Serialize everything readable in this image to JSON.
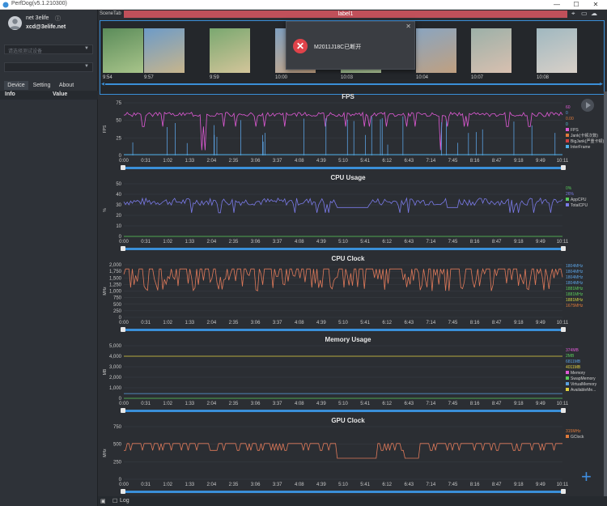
{
  "window": {
    "title": "PerfDog(v5.1.210300)"
  },
  "user": {
    "name": "net 3elife",
    "email": "xcd@3elife.net"
  },
  "sidebar": {
    "device_placeholder": "请选择测试设备",
    "app_placeholder": "",
    "tabs": [
      "Device",
      "Setting",
      "About"
    ],
    "columns": [
      "Info",
      "Value"
    ]
  },
  "scene": {
    "tab_label": "SceneTab",
    "label": "label1"
  },
  "thumbnail_times": [
    "9:54",
    "9:57",
    "9:59",
    "10:00",
    "10:03",
    "10:04",
    "10:07",
    "10:08"
  ],
  "toast": {
    "message": "M2011J18C已断开"
  },
  "bottom": {
    "log_label": "Log"
  },
  "x_axis_ticks": [
    "0:00",
    "0:31",
    "1:02",
    "1:33",
    "2:04",
    "2:35",
    "3:06",
    "3:37",
    "4:08",
    "4:39",
    "5:10",
    "5:41",
    "6:12",
    "6:43",
    "7:14",
    "7:45",
    "8:16",
    "8:47",
    "9:18",
    "9:49",
    "10:11"
  ],
  "charts": [
    {
      "id": "fps",
      "title": "FPS",
      "ylabel": "FPS",
      "y_ticks": [
        "75",
        "50",
        "25",
        "0"
      ],
      "ymax": 75,
      "legend_values": [
        {
          "text": "60",
          "color": "#e05ad6"
        },
        {
          "text": "0",
          "color": "#5aa0e0"
        },
        {
          "text": "0.00",
          "color": "#e07a3a"
        },
        {
          "text": "0",
          "color": "#5ac8e0"
        }
      ],
      "legend_items": [
        {
          "text": "FPS",
          "color": "#e05ad6"
        },
        {
          "text": "Jank(卡顿次数)",
          "color": "#e07a3a"
        },
        {
          "text": "BigJank(严重卡顿)",
          "color": "#d04040"
        },
        {
          "text": "InterFrame",
          "color": "#4fb0e8"
        }
      ]
    },
    {
      "id": "cpu_usage",
      "title": "CPU Usage",
      "ylabel": "%",
      "y_ticks": [
        "50",
        "40",
        "30",
        "20",
        "10",
        "0"
      ],
      "ymax": 50,
      "legend_values": [
        {
          "text": "0%",
          "color": "#5acc5a"
        },
        {
          "text": "26%",
          "color": "#7a7ae8"
        }
      ],
      "legend_items": [
        {
          "text": "AppCPU",
          "color": "#5acc5a"
        },
        {
          "text": "TotalCPU",
          "color": "#7a7ae8"
        }
      ]
    },
    {
      "id": "cpu_clock",
      "title": "CPU Clock",
      "ylabel": "MHz",
      "y_ticks": [
        "2,000",
        "1,750",
        "1,500",
        "1,250",
        "1,000",
        "750",
        "500",
        "250",
        "0"
      ],
      "ymax": 2000,
      "legend_values": [
        {
          "text": "1804MHz",
          "color": "#5aa0e0"
        },
        {
          "text": "1804MHz",
          "color": "#5aa0e0"
        },
        {
          "text": "1804MHz",
          "color": "#5aa0e0"
        },
        {
          "text": "1804MHz",
          "color": "#5aa0e0"
        },
        {
          "text": "1881MHz",
          "color": "#5acc5a"
        },
        {
          "text": "1881MHz",
          "color": "#5acc5a"
        },
        {
          "text": "1881MHz",
          "color": "#d0d040"
        },
        {
          "text": "1675MHz",
          "color": "#e07a3a"
        }
      ],
      "legend_items": []
    },
    {
      "id": "memory",
      "title": "Memory Usage",
      "ylabel": "MB",
      "y_ticks": [
        "5,000",
        "4,000",
        "3,000",
        "2,000",
        "1,000",
        "0"
      ],
      "ymax": 5000,
      "legend_values": [
        {
          "text": "374MB",
          "color": "#e05ad6"
        },
        {
          "text": "2MB",
          "color": "#5acc5a"
        },
        {
          "text": "6811MB",
          "color": "#5aa0e0"
        },
        {
          "text": "4011MB",
          "color": "#e0d040"
        }
      ],
      "legend_items": [
        {
          "text": "Memory",
          "color": "#e05ad6"
        },
        {
          "text": "SwapMemory",
          "color": "#5acc5a"
        },
        {
          "text": "VirtualMemory",
          "color": "#5aa0e0"
        },
        {
          "text": "AvailableMe...",
          "color": "#e0d040"
        }
      ]
    },
    {
      "id": "gpu_clock",
      "title": "GPU Clock",
      "ylabel": "MHz",
      "y_ticks": [
        "750",
        "500",
        "250",
        "0"
      ],
      "ymax": 750,
      "legend_values": [
        {
          "text": "315MHz",
          "color": "#e07a3a"
        }
      ],
      "legend_items": [
        {
          "text": "GClock",
          "color": "#e07a3a"
        }
      ]
    }
  ],
  "colors": {
    "accent": "#3a8fd8",
    "label_bar": "#c0505a",
    "fps": "#e05ad6",
    "cpu_total": "#7a7ae8",
    "cpu_clock": "#e07a5a",
    "memory_available": "#e0d040",
    "gpu_clock": "#e07a5a"
  }
}
